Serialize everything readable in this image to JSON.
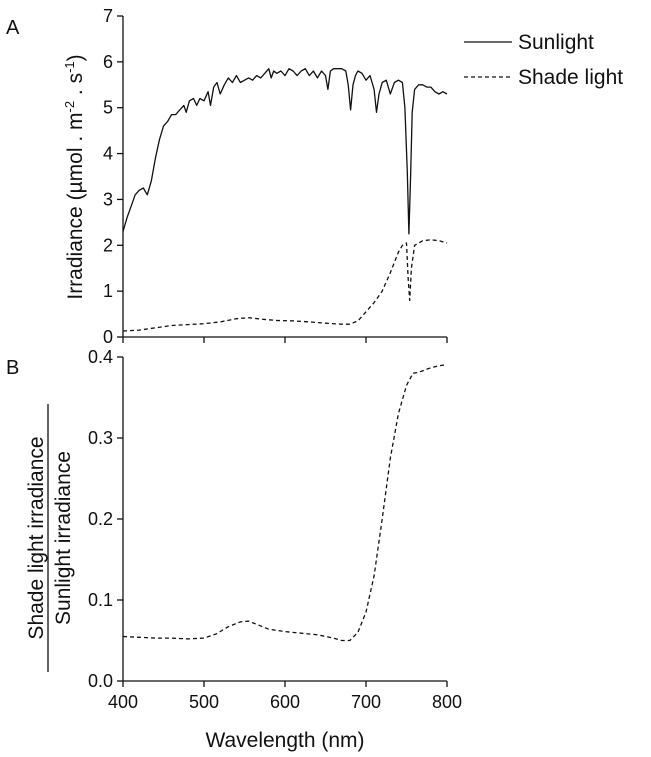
{
  "figure": {
    "panel_a": "A",
    "panel_b": "B",
    "x_axis_title": "Wavelength (nm)",
    "a_y_axis_title": "Irradiance (µmol . m",
    "a_y_axis_sup1": "-2",
    "a_y_axis_mid": " . s",
    "a_y_axis_sup2": "-1",
    "a_y_axis_end": ")",
    "b_y_axis_numerator": "Shade light irradiance",
    "b_y_axis_denominator": "Sunlight irradiance"
  },
  "chart_data": [
    {
      "panel": "A",
      "type": "line",
      "ylabel": "Irradiance (µmol . m-2 . s-1)",
      "xlim": [
        400,
        800
      ],
      "ylim": [
        0,
        7
      ],
      "x_ticks": [
        "400",
        "500",
        "600",
        "700",
        "800"
      ],
      "y_ticks": [
        "0",
        "1",
        "2",
        "3",
        "4",
        "5",
        "6",
        "7"
      ],
      "x_tick_labels_shown": false,
      "legend": "top-right outside",
      "series": [
        {
          "name": "Sunlight",
          "style": "solid",
          "points": [
            [
              400,
              2.3
            ],
            [
              405,
              2.6
            ],
            [
              410,
              2.85
            ],
            [
              415,
              3.1
            ],
            [
              420,
              3.2
            ],
            [
              425,
              3.25
            ],
            [
              430,
              3.1
            ],
            [
              435,
              3.4
            ],
            [
              440,
              3.9
            ],
            [
              445,
              4.3
            ],
            [
              450,
              4.6
            ],
            [
              455,
              4.7
            ],
            [
              460,
              4.85
            ],
            [
              465,
              4.85
            ],
            [
              470,
              4.95
            ],
            [
              475,
              5.05
            ],
            [
              478,
              4.9
            ],
            [
              482,
              5.15
            ],
            [
              487,
              5.2
            ],
            [
              491,
              5.05
            ],
            [
              495,
              5.2
            ],
            [
              500,
              5.15
            ],
            [
              505,
              5.35
            ],
            [
              508,
              5.05
            ],
            [
              512,
              5.45
            ],
            [
              516,
              5.55
            ],
            [
              520,
              5.3
            ],
            [
              525,
              5.5
            ],
            [
              530,
              5.65
            ],
            [
              535,
              5.55
            ],
            [
              540,
              5.7
            ],
            [
              545,
              5.55
            ],
            [
              550,
              5.6
            ],
            [
              555,
              5.65
            ],
            [
              560,
              5.6
            ],
            [
              565,
              5.7
            ],
            [
              570,
              5.65
            ],
            [
              575,
              5.75
            ],
            [
              580,
              5.85
            ],
            [
              583,
              5.65
            ],
            [
              586,
              5.8
            ],
            [
              590,
              5.75
            ],
            [
              595,
              5.8
            ],
            [
              600,
              5.7
            ],
            [
              605,
              5.85
            ],
            [
              610,
              5.8
            ],
            [
              615,
              5.7
            ],
            [
              620,
              5.8
            ],
            [
              625,
              5.85
            ],
            [
              630,
              5.7
            ],
            [
              635,
              5.8
            ],
            [
              640,
              5.65
            ],
            [
              645,
              5.8
            ],
            [
              650,
              5.7
            ],
            [
              653,
              5.4
            ],
            [
              656,
              5.8
            ],
            [
              660,
              5.85
            ],
            [
              665,
              5.85
            ],
            [
              670,
              5.85
            ],
            [
              675,
              5.8
            ],
            [
              678,
              5.5
            ],
            [
              681,
              4.95
            ],
            [
              684,
              5.5
            ],
            [
              687,
              5.7
            ],
            [
              690,
              5.8
            ],
            [
              695,
              5.75
            ],
            [
              700,
              5.6
            ],
            [
              705,
              5.7
            ],
            [
              710,
              5.4
            ],
            [
              713,
              4.9
            ],
            [
              716,
              5.3
            ],
            [
              720,
              5.55
            ],
            [
              725,
              5.6
            ],
            [
              730,
              5.3
            ],
            [
              735,
              5.55
            ],
            [
              740,
              5.6
            ],
            [
              745,
              5.55
            ],
            [
              748,
              5.0
            ],
            [
              751,
              3.6
            ],
            [
              753,
              2.25
            ],
            [
              755,
              3.5
            ],
            [
              757,
              4.9
            ],
            [
              760,
              5.4
            ],
            [
              765,
              5.5
            ],
            [
              770,
              5.5
            ],
            [
              775,
              5.45
            ],
            [
              780,
              5.45
            ],
            [
              785,
              5.35
            ],
            [
              790,
              5.3
            ],
            [
              795,
              5.35
            ],
            [
              800,
              5.3
            ]
          ]
        },
        {
          "name": "Shade light",
          "style": "dashed",
          "points": [
            [
              400,
              0.13
            ],
            [
              420,
              0.15
            ],
            [
              440,
              0.2
            ],
            [
              460,
              0.25
            ],
            [
              480,
              0.27
            ],
            [
              500,
              0.29
            ],
            [
              520,
              0.33
            ],
            [
              540,
              0.4
            ],
            [
              555,
              0.42
            ],
            [
              570,
              0.39
            ],
            [
              590,
              0.36
            ],
            [
              610,
              0.35
            ],
            [
              630,
              0.33
            ],
            [
              650,
              0.3
            ],
            [
              670,
              0.28
            ],
            [
              680,
              0.28
            ],
            [
              690,
              0.35
            ],
            [
              700,
              0.55
            ],
            [
              710,
              0.75
            ],
            [
              720,
              1.0
            ],
            [
              730,
              1.4
            ],
            [
              740,
              1.85
            ],
            [
              745,
              2.0
            ],
            [
              750,
              2.05
            ],
            [
              752,
              1.3
            ],
            [
              754,
              0.8
            ],
            [
              756,
              1.5
            ],
            [
              760,
              2.0
            ],
            [
              770,
              2.1
            ],
            [
              780,
              2.12
            ],
            [
              790,
              2.1
            ],
            [
              800,
              2.05
            ]
          ]
        }
      ]
    },
    {
      "panel": "B",
      "type": "line",
      "xlabel": "Wavelength (nm)",
      "ylabel": "Shade light irradiance / Sunlight irradiance",
      "xlim": [
        400,
        800
      ],
      "ylim": [
        0,
        0.4
      ],
      "x_ticks": [
        "400",
        "500",
        "600",
        "700",
        "800"
      ],
      "y_ticks": [
        "0.0",
        "0.1",
        "0.2",
        "0.3",
        "0.4"
      ],
      "series": [
        {
          "style": "dashed",
          "points": [
            [
              400,
              0.055
            ],
            [
              420,
              0.054
            ],
            [
              440,
              0.053
            ],
            [
              460,
              0.053
            ],
            [
              480,
              0.052
            ],
            [
              500,
              0.053
            ],
            [
              515,
              0.058
            ],
            [
              530,
              0.067
            ],
            [
              545,
              0.073
            ],
            [
              555,
              0.074
            ],
            [
              565,
              0.07
            ],
            [
              580,
              0.064
            ],
            [
              600,
              0.061
            ],
            [
              620,
              0.059
            ],
            [
              640,
              0.057
            ],
            [
              660,
              0.053
            ],
            [
              670,
              0.05
            ],
            [
              680,
              0.05
            ],
            [
              690,
              0.06
            ],
            [
              700,
              0.085
            ],
            [
              710,
              0.13
            ],
            [
              720,
              0.2
            ],
            [
              730,
              0.275
            ],
            [
              740,
              0.33
            ],
            [
              750,
              0.365
            ],
            [
              758,
              0.38
            ],
            [
              765,
              0.381
            ],
            [
              775,
              0.385
            ],
            [
              785,
              0.388
            ],
            [
              795,
              0.39
            ],
            [
              800,
              0.39
            ]
          ]
        }
      ]
    }
  ]
}
